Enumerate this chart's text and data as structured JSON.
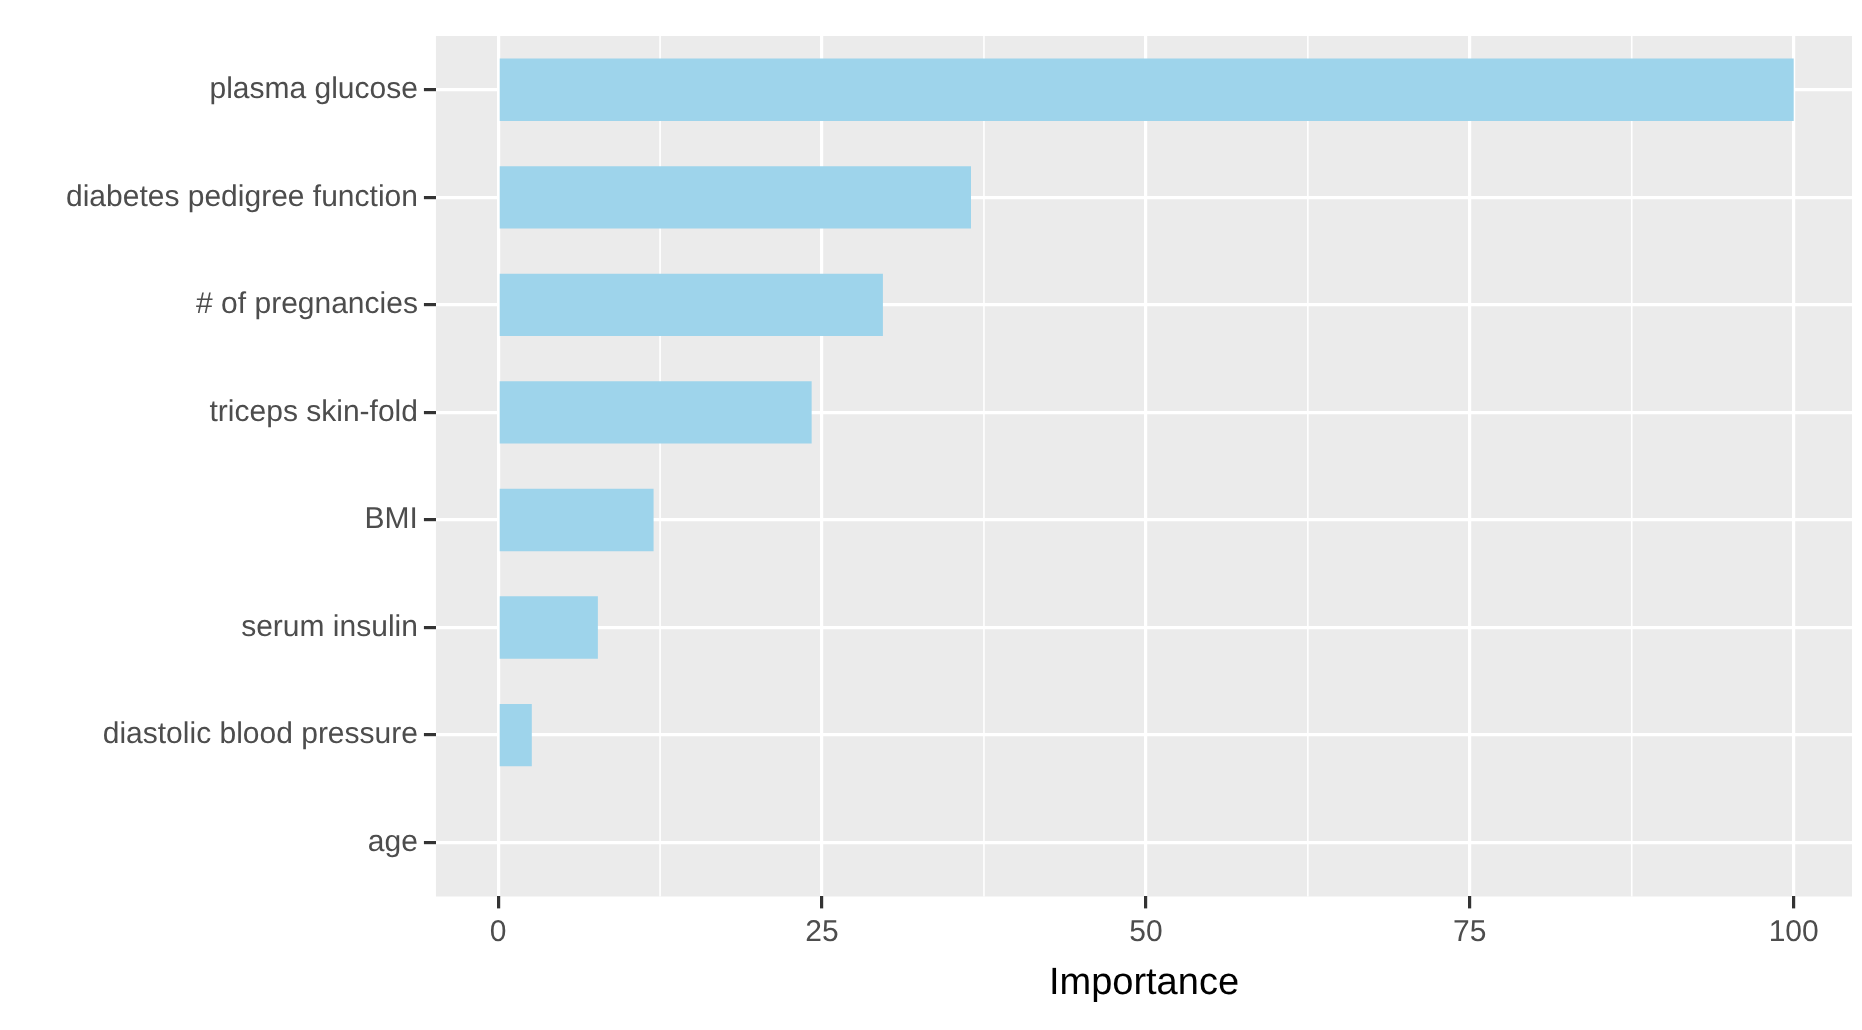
{
  "chart_data": {
    "type": "bar",
    "orientation": "horizontal",
    "xlabel": "Importance",
    "categories": [
      "plasma glucose",
      "diabetes pedigree function",
      "# of pregnancies",
      "triceps skin-fold",
      "BMI",
      "serum insulin",
      "diastolic blood pressure",
      "age"
    ],
    "values": [
      100,
      36.5,
      29.7,
      24.2,
      12,
      7.7,
      2.6,
      0
    ],
    "color": "#9ed4eb",
    "xlim": [
      -4.8,
      104.5
    ],
    "xticks": [
      0,
      25,
      50,
      75,
      100
    ],
    "grid": true,
    "legend": false
  }
}
